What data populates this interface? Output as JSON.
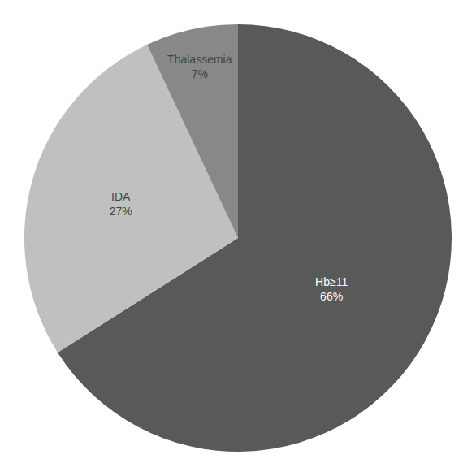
{
  "chart_data": {
    "type": "pie",
    "categories": [
      "Hb≥11",
      "IDA",
      "Thalassemia"
    ],
    "values": [
      66,
      27,
      7
    ],
    "value_labels": [
      "66%",
      "27%",
      "7%"
    ],
    "colors": [
      "#595959",
      "#c0c0c0",
      "#888888"
    ]
  }
}
